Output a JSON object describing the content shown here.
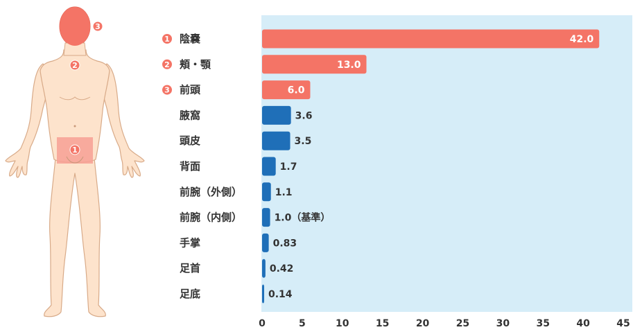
{
  "colors": {
    "highlight": "#f47466",
    "normal": "#1f6fb8",
    "plot_bg": "#d6edf8",
    "skin": "#fde3cc",
    "skin_stroke": "#d8aa88",
    "text": "#333333"
  },
  "figure": {
    "markers": [
      {
        "num": "1",
        "region": "陰嚢"
      },
      {
        "num": "2",
        "region": "頬・顎"
      },
      {
        "num": "3",
        "region": "前頭"
      }
    ]
  },
  "chart_data": {
    "type": "bar",
    "orientation": "horizontal",
    "title": "",
    "xlabel": "",
    "ylabel": "",
    "xlim": [
      0,
      45
    ],
    "xticks": [
      0,
      5,
      10,
      15,
      20,
      25,
      30,
      35,
      40,
      45
    ],
    "grid": false,
    "categories": [
      "陰嚢",
      "頬・顎",
      "前頭",
      "腋窩",
      "頭皮",
      "背面",
      "前腕（外側）",
      "前腕（内側）",
      "手掌",
      "足首",
      "足底"
    ],
    "values": [
      42.0,
      13.0,
      6.0,
      3.6,
      3.5,
      1.7,
      1.1,
      1.0,
      0.83,
      0.42,
      0.14
    ],
    "value_labels": [
      "42.0",
      "13.0",
      "6.0",
      "3.6",
      "3.5",
      "1.7",
      "1.1",
      "1.0（基準）",
      "0.83",
      "0.42",
      "0.14"
    ],
    "badges": [
      "1",
      "2",
      "3",
      "",
      "",
      "",
      "",
      "",
      "",
      "",
      ""
    ],
    "highlighted": [
      true,
      true,
      true,
      false,
      false,
      false,
      false,
      false,
      false,
      false,
      false
    ]
  }
}
